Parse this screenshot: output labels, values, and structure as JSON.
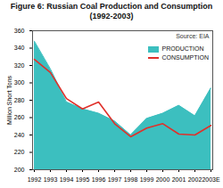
{
  "chart_data": {
    "type": "line",
    "title": "Figure 6: Russian Coal Production and Consumption (1992-2003)",
    "annotation": "Source: EIA",
    "y_label": "Million Short Tons",
    "x": [
      "1992",
      "1993",
      "1994",
      "1995",
      "1996",
      "1997",
      "1998",
      "1999",
      "2000",
      "2001",
      "2002",
      "2003E"
    ],
    "series": [
      {
        "name": "PRODUCTION",
        "type": "area",
        "color": "#3cbfbf",
        "values": [
          348,
          316,
          278,
          270,
          265,
          256,
          240,
          259,
          265,
          274,
          262,
          294
        ]
      },
      {
        "name": "CONSUMPTION",
        "type": "line",
        "color": "#e0302a",
        "values": [
          327,
          312,
          282,
          270,
          278,
          253,
          238,
          248,
          253,
          241,
          240,
          251
        ]
      }
    ],
    "ylim": [
      200,
      360
    ],
    "yticks": [
      200,
      220,
      240,
      260,
      280,
      300,
      320,
      340,
      360
    ],
    "grid": false,
    "legend": "upper right"
  }
}
